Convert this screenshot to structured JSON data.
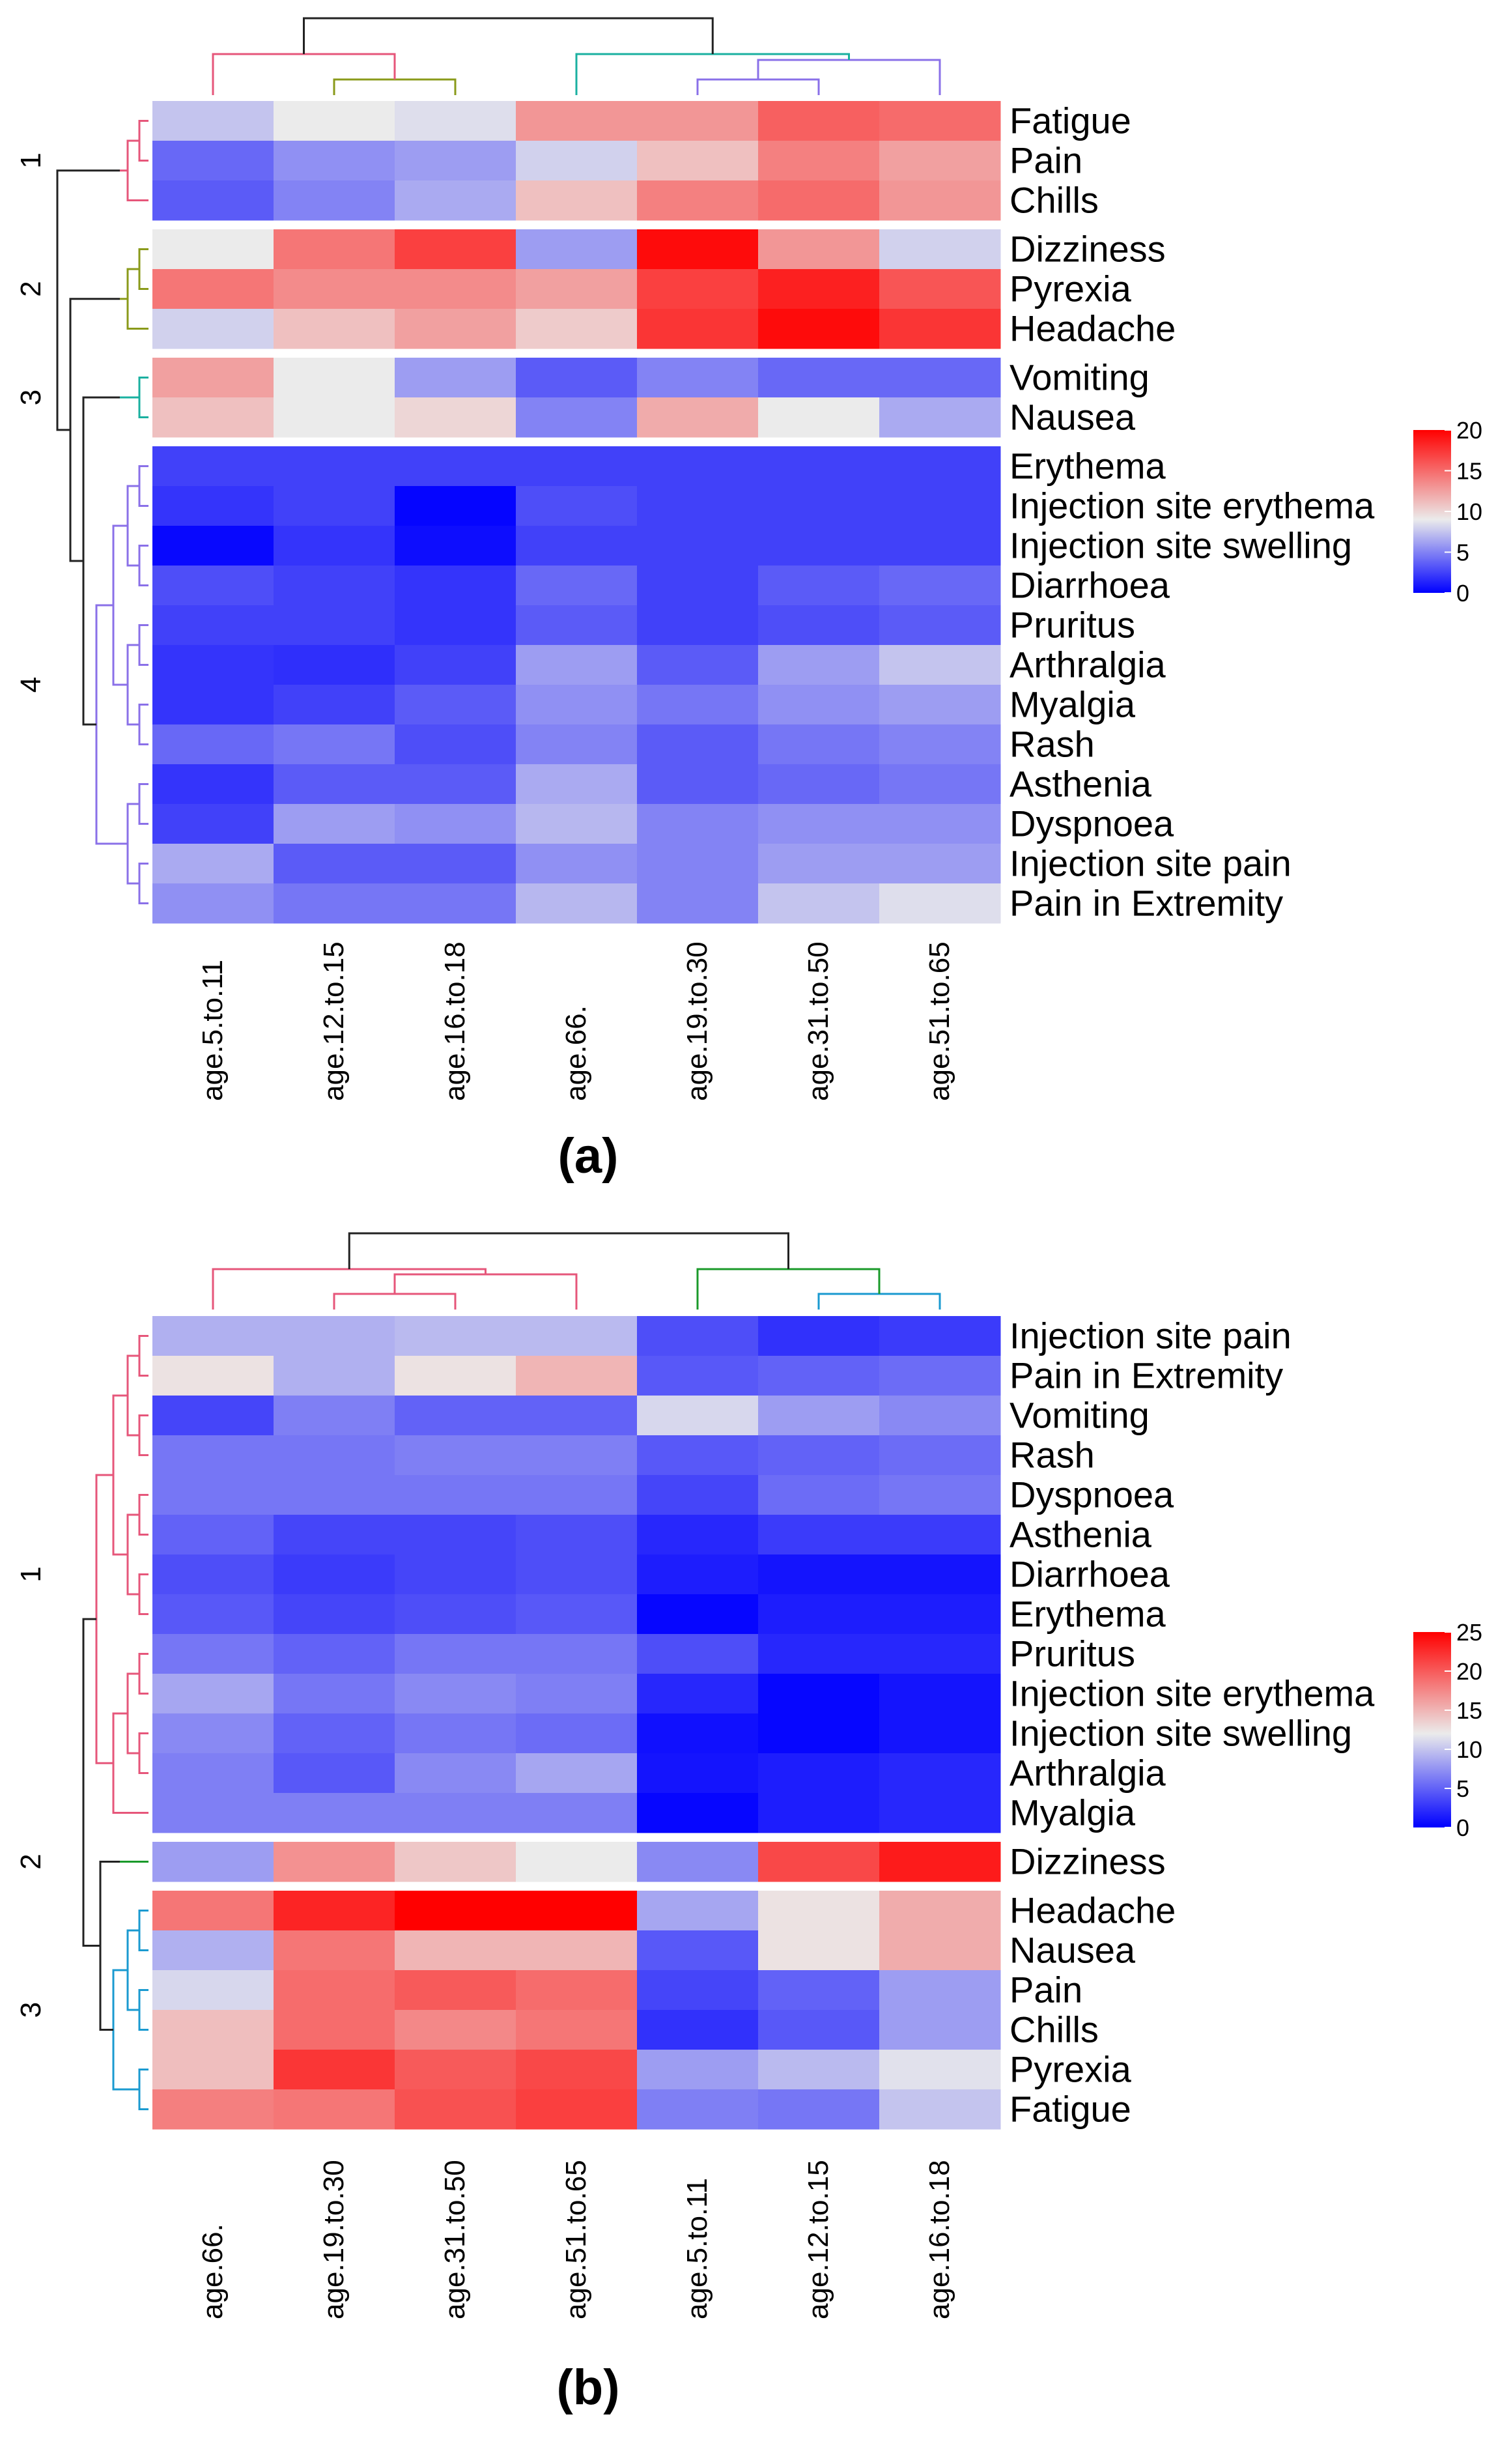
{
  "chart_data": [
    {
      "type": "heatmap",
      "panel_label": "(a)",
      "columns": [
        "age.5.to.11",
        "age.12.to.15",
        "age.16.to.18",
        "age.66.",
        "age.19.to.30",
        "age.31.to.50",
        "age.51.to.65"
      ],
      "column_clusters": [
        [
          "age.5.to.11"
        ],
        [
          "age.12.to.15",
          "age.16.to.18"
        ],
        [
          "age.66."
        ],
        [
          "age.19.to.30",
          "age.31.to.50",
          "age.51.to.65"
        ]
      ],
      "row_clusters": [
        {
          "label": "1",
          "rows": [
            "Fatigue",
            "Pain",
            "Chills"
          ]
        },
        {
          "label": "2",
          "rows": [
            "Dizziness",
            "Pyrexia",
            "Headache"
          ]
        },
        {
          "label": "3",
          "rows": [
            "Vomiting",
            "Nausea"
          ]
        },
        {
          "label": "4",
          "rows": [
            "Erythema",
            "Injection site erythema",
            "Injection site swelling",
            "Diarrhoea",
            "Pruritus",
            "Arthralgia",
            "Myalgia",
            "Rash",
            "Asthenia",
            "Dyspnoea",
            "Injection site pain",
            "Pain in Extremity"
          ]
        }
      ],
      "rows": [
        "Fatigue",
        "Pain",
        "Chills",
        "Dizziness",
        "Pyrexia",
        "Headache",
        "Vomiting",
        "Nausea",
        "Erythema",
        "Injection site erythema",
        "Injection site swelling",
        "Diarrhoea",
        "Pruritus",
        "Arthralgia",
        "Myalgia",
        "Rash",
        "Asthenia",
        "Dyspnoea",
        "Injection site pain",
        "Pain in Extremity"
      ],
      "values": [
        [
          7.5,
          9,
          8.5,
          13,
          13,
          15.5,
          15
        ],
        [
          4,
          5.5,
          6,
          8,
          11,
          14,
          12.5
        ],
        [
          3.5,
          5,
          6.5,
          11,
          14,
          15,
          13
        ],
        [
          9,
          14.5,
          17,
          6,
          19.5,
          13,
          8
        ],
        [
          14.5,
          13.5,
          13.5,
          12.5,
          17,
          18.5,
          16
        ],
        [
          8,
          11,
          12.5,
          10.5,
          17.5,
          19.5,
          17.5
        ],
        [
          12.5,
          9,
          6,
          3.5,
          5,
          4,
          4
        ],
        [
          11,
          9,
          10,
          5,
          12,
          9,
          6.5
        ],
        [
          2.5,
          2.5,
          2.5,
          2.5,
          2.5,
          2.5,
          2.5
        ],
        [
          2,
          2.5,
          0.2,
          3,
          2.5,
          2.5,
          2.5
        ],
        [
          0.3,
          2,
          0.5,
          2.5,
          2.5,
          2.5,
          2.5
        ],
        [
          3,
          2.5,
          2,
          4,
          2.5,
          3.5,
          4
        ],
        [
          2.5,
          2.5,
          2,
          3.5,
          2.5,
          3,
          3.5
        ],
        [
          2,
          1.8,
          2.5,
          6,
          3.5,
          6,
          7.5
        ],
        [
          2,
          2.5,
          3.5,
          5.5,
          4.5,
          5.5,
          6
        ],
        [
          4,
          4.5,
          3,
          5,
          3.5,
          4.5,
          5
        ],
        [
          2,
          3.5,
          3.5,
          6.5,
          3.5,
          4,
          4.5
        ],
        [
          2.5,
          6,
          5.5,
          7,
          5,
          5.5,
          5.5
        ],
        [
          6.5,
          3.5,
          3.5,
          5.5,
          5,
          6,
          6
        ],
        [
          5.5,
          4.5,
          4.5,
          7,
          5,
          7.5,
          8.5
        ]
      ],
      "scale": {
        "min": 0,
        "max": 20,
        "ticks": [
          0,
          5,
          10,
          15,
          20
        ],
        "mid": 9
      },
      "colors": {
        "low": "#0000ff",
        "mid": "#ebebeb",
        "high": "#ff0000"
      }
    },
    {
      "type": "heatmap",
      "panel_label": "(b)",
      "columns": [
        "age.66.",
        "age.19.to.30",
        "age.31.to.50",
        "age.51.to.65",
        "age.5.to.11",
        "age.12.to.15",
        "age.16.to.18"
      ],
      "column_clusters": [
        [
          "age.66."
        ],
        [
          "age.19.to.30",
          "age.31.to.50",
          "age.51.to.65"
        ],
        [
          "age.5.to.11"
        ],
        [
          "age.12.to.15",
          "age.16.to.18"
        ]
      ],
      "row_clusters": [
        {
          "label": "1",
          "rows": [
            "Injection site pain",
            "Pain in Extremity",
            "Vomiting",
            "Rash",
            "Dyspnoea",
            "Asthenia",
            "Diarrhoea",
            "Erythema",
            "Pruritus",
            "Injection site erythema",
            "Injection site swelling",
            "Arthralgia",
            "Myalgia"
          ]
        },
        {
          "label": "2",
          "rows": [
            "Dizziness"
          ]
        },
        {
          "label": "3",
          "rows": [
            "Headache",
            "Nausea",
            "Pain",
            "Chills",
            "Pyrexia",
            "Fatigue"
          ]
        }
      ],
      "rows": [
        "Injection site pain",
        "Pain in Extremity",
        "Vomiting",
        "Rash",
        "Dyspnoea",
        "Asthenia",
        "Diarrhoea",
        "Erythema",
        "Pruritus",
        "Injection site erythema",
        "Injection site swelling",
        "Arthralgia",
        "Myalgia",
        "Dizziness",
        "Headache",
        "Nausea",
        "Pain",
        "Chills",
        "Pyrexia",
        "Fatigue"
      ],
      "values": [
        [
          9,
          9,
          9.5,
          9.5,
          4,
          2.5,
          3
        ],
        [
          12.5,
          9,
          12.5,
          15,
          4.5,
          5,
          5.5
        ],
        [
          3.5,
          6.5,
          5,
          5,
          11,
          8,
          7
        ],
        [
          6,
          6,
          6.5,
          6.5,
          4.5,
          5,
          5.5
        ],
        [
          6,
          6,
          6,
          6,
          3.5,
          5.5,
          6
        ],
        [
          5,
          3.5,
          3.5,
          4,
          2,
          3,
          3
        ],
        [
          4,
          3,
          3.5,
          4,
          1.5,
          1,
          1
        ],
        [
          4.5,
          3.5,
          4,
          4.5,
          0.3,
          1.5,
          1.5
        ],
        [
          6,
          5,
          6,
          6,
          4,
          2,
          2
        ],
        [
          8.5,
          6,
          7,
          6.5,
          2,
          0.3,
          1
        ],
        [
          7,
          5,
          6,
          5.5,
          0.8,
          0.3,
          1
        ],
        [
          6.5,
          4.5,
          7,
          8.5,
          1,
          1.5,
          2
        ],
        [
          6.5,
          6.5,
          6.5,
          6.5,
          0.3,
          1.5,
          2
        ],
        [
          8,
          17,
          14,
          12,
          7,
          21,
          23.5
        ],
        [
          18.5,
          23,
          25,
          25,
          8.5,
          12.5,
          15.5
        ],
        [
          9,
          18.5,
          15,
          15,
          4.5,
          12.5,
          15.5
        ],
        [
          11,
          19,
          20,
          19,
          3.5,
          5,
          8
        ],
        [
          14.5,
          19,
          17.5,
          18.5,
          2.5,
          4.5,
          8
        ],
        [
          14.5,
          22,
          20,
          21,
          8,
          9.5,
          11.5
        ],
        [
          18,
          18.5,
          20.5,
          21.5,
          6.5,
          6,
          10
        ]
      ],
      "scale": {
        "min": 0,
        "max": 25,
        "ticks": [
          0,
          5,
          10,
          15,
          20,
          25
        ],
        "mid": 12
      },
      "colors": {
        "low": "#0000ff",
        "mid": "#ebebeb",
        "high": "#ff0000"
      }
    }
  ]
}
